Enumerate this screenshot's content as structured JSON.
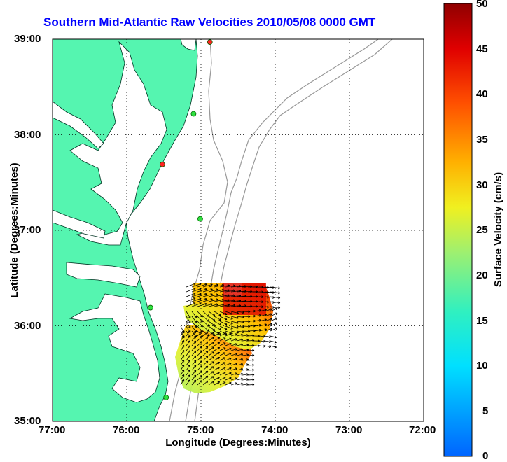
{
  "title": "Southern Mid-Atlantic Raw Velocities 2010/05/08 0000 GMT",
  "xlabel": "Longitude (Degrees:Minutes)",
  "ylabel": "Latitude (Degrees:Minutes)",
  "colorbar": {
    "label": "Surface Velocity (cm/s)",
    "ticks": [
      "50",
      "45",
      "40",
      "35",
      "30",
      "25",
      "20",
      "15",
      "10",
      "5",
      "0"
    ],
    "min": 0,
    "max": 50
  },
  "colors": {
    "land": "#55f5b0",
    "title": "#0000ff",
    "bathymetry": "#999999",
    "vector": "#000000"
  },
  "chart_data": {
    "type": "map",
    "xlim": [
      -77,
      -72
    ],
    "ylim": [
      35,
      39
    ],
    "x_tick_labels": [
      "77:00",
      "76:00",
      "75:00",
      "74:00",
      "73:00",
      "72:00"
    ],
    "y_tick_labels": [
      "39:00",
      "38:00",
      "37:00",
      "36:00",
      "35:00"
    ],
    "grid": "dotted",
    "stations": [
      {
        "lon": -74.88,
        "lat": 38.97,
        "status": "red"
      },
      {
        "lon": -75.1,
        "lat": 38.22,
        "status": "green"
      },
      {
        "lon": -75.52,
        "lat": 37.69,
        "status": "red"
      },
      {
        "lon": -75.01,
        "lat": 37.12,
        "status": "green"
      },
      {
        "lon": -75.68,
        "lat": 36.19,
        "status": "green"
      },
      {
        "lon": -75.47,
        "lat": 35.25,
        "status": "green"
      }
    ]
  }
}
